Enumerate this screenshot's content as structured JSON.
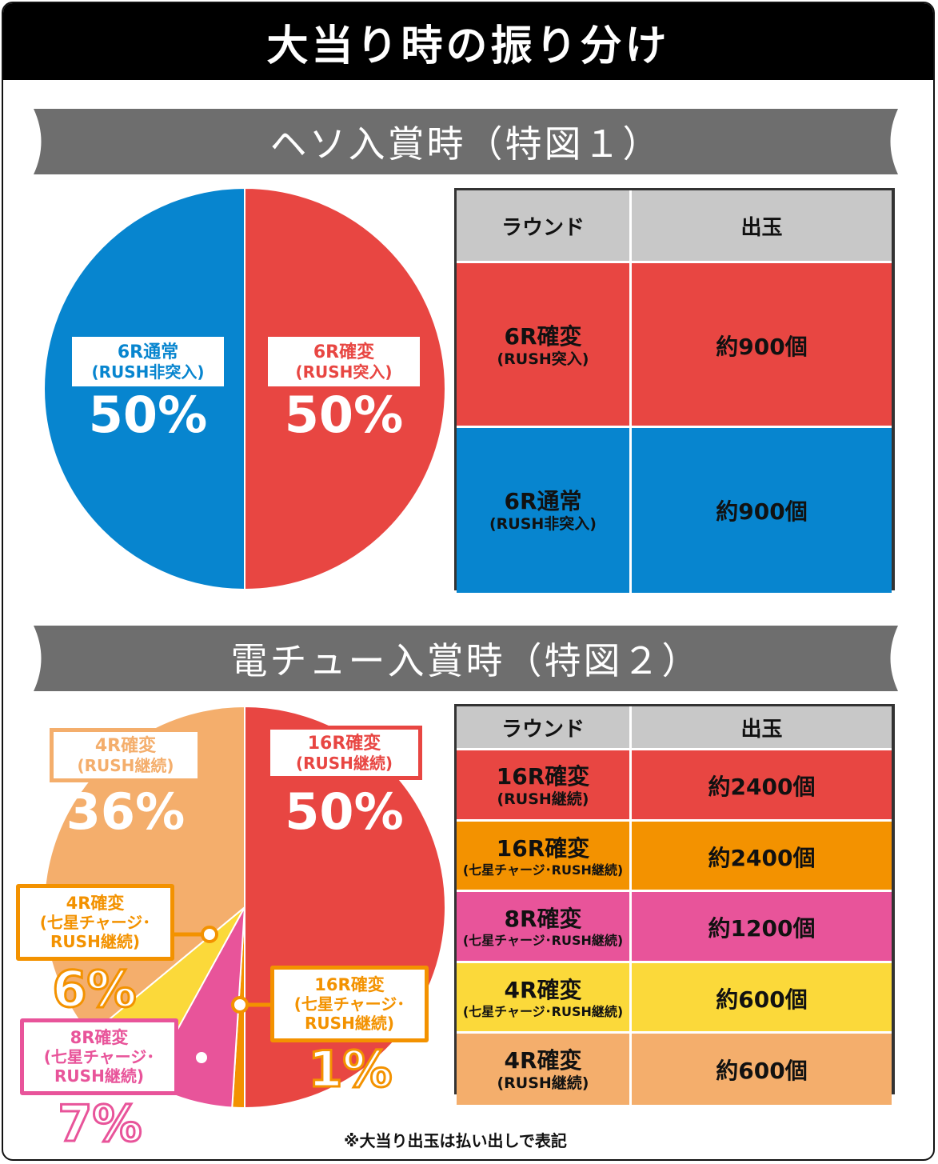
{
  "title": "大当り時の振り分け",
  "colors": {
    "red": "#e84642",
    "blue": "#0785cf",
    "lightOrange": "#f4ae6c",
    "orange": "#f39200",
    "pink": "#e8549a",
    "yellow": "#fbd93a",
    "gray": "#6e6e6e",
    "headerGray": "#c8c8c8"
  },
  "section1": {
    "heading": "ヘソ入賞時（特図１）",
    "table": {
      "headers": [
        "ラウンド",
        "出玉"
      ],
      "rows": [
        {
          "round": "6R確変",
          "sub": "(RUSH突入)",
          "payout": "約900個"
        },
        {
          "round": "6R通常",
          "sub": "(RUSH非突入)",
          "payout": "約900個"
        }
      ]
    }
  },
  "section2": {
    "heading": "電チュー入賞時（特図２）",
    "table": {
      "headers": [
        "ラウンド",
        "出玉"
      ],
      "rows": [
        {
          "round": "16R確変",
          "sub": "(RUSH継続)",
          "payout": "約2400個"
        },
        {
          "round": "16R確変",
          "sub": "(七星チャージ･RUSH継続)",
          "payout": "約2400個"
        },
        {
          "round": "8R確変",
          "sub": "(七星チャージ･RUSH継続)",
          "payout": "約1200個"
        },
        {
          "round": "4R確変",
          "sub": "(七星チャージ･RUSH継続)",
          "payout": "約600個"
        },
        {
          "round": "4R確変",
          "sub": "(RUSH継続)",
          "payout": "約600個"
        }
      ]
    }
  },
  "chart_data": [
    {
      "type": "pie",
      "slices": [
        {
          "label": "6R確変",
          "sublabel": "(RUSH突入)",
          "value": 50,
          "display": "50%",
          "color": "#e84642"
        },
        {
          "label": "6R通常",
          "sublabel": "(RUSH非突入)",
          "value": 50,
          "display": "50%",
          "color": "#0785cf"
        }
      ]
    },
    {
      "type": "pie",
      "slices": [
        {
          "label": "16R確変",
          "sublabel": "(RUSH継続)",
          "value": 50,
          "display": "50%",
          "color": "#e84642"
        },
        {
          "label": "16R確変",
          "sublabel": "(七星チャージ･ RUSH継続)",
          "value": 1,
          "display": "1%",
          "color": "#f39200"
        },
        {
          "label": "8R確変",
          "sublabel": "(七星チャージ･ RUSH継続)",
          "value": 7,
          "display": "7%",
          "color": "#e8549a"
        },
        {
          "label": "4R確変",
          "sublabel": "(七星チャージ･ RUSH継続)",
          "value": 6,
          "display": "6%",
          "color": "#fbd93a"
        },
        {
          "label": "4R確変",
          "sublabel": "(RUSH継続)",
          "value": 36,
          "display": "36%",
          "color": "#f4ae6c"
        }
      ]
    }
  ],
  "note": "※大当り出玉は払い出しで表記"
}
